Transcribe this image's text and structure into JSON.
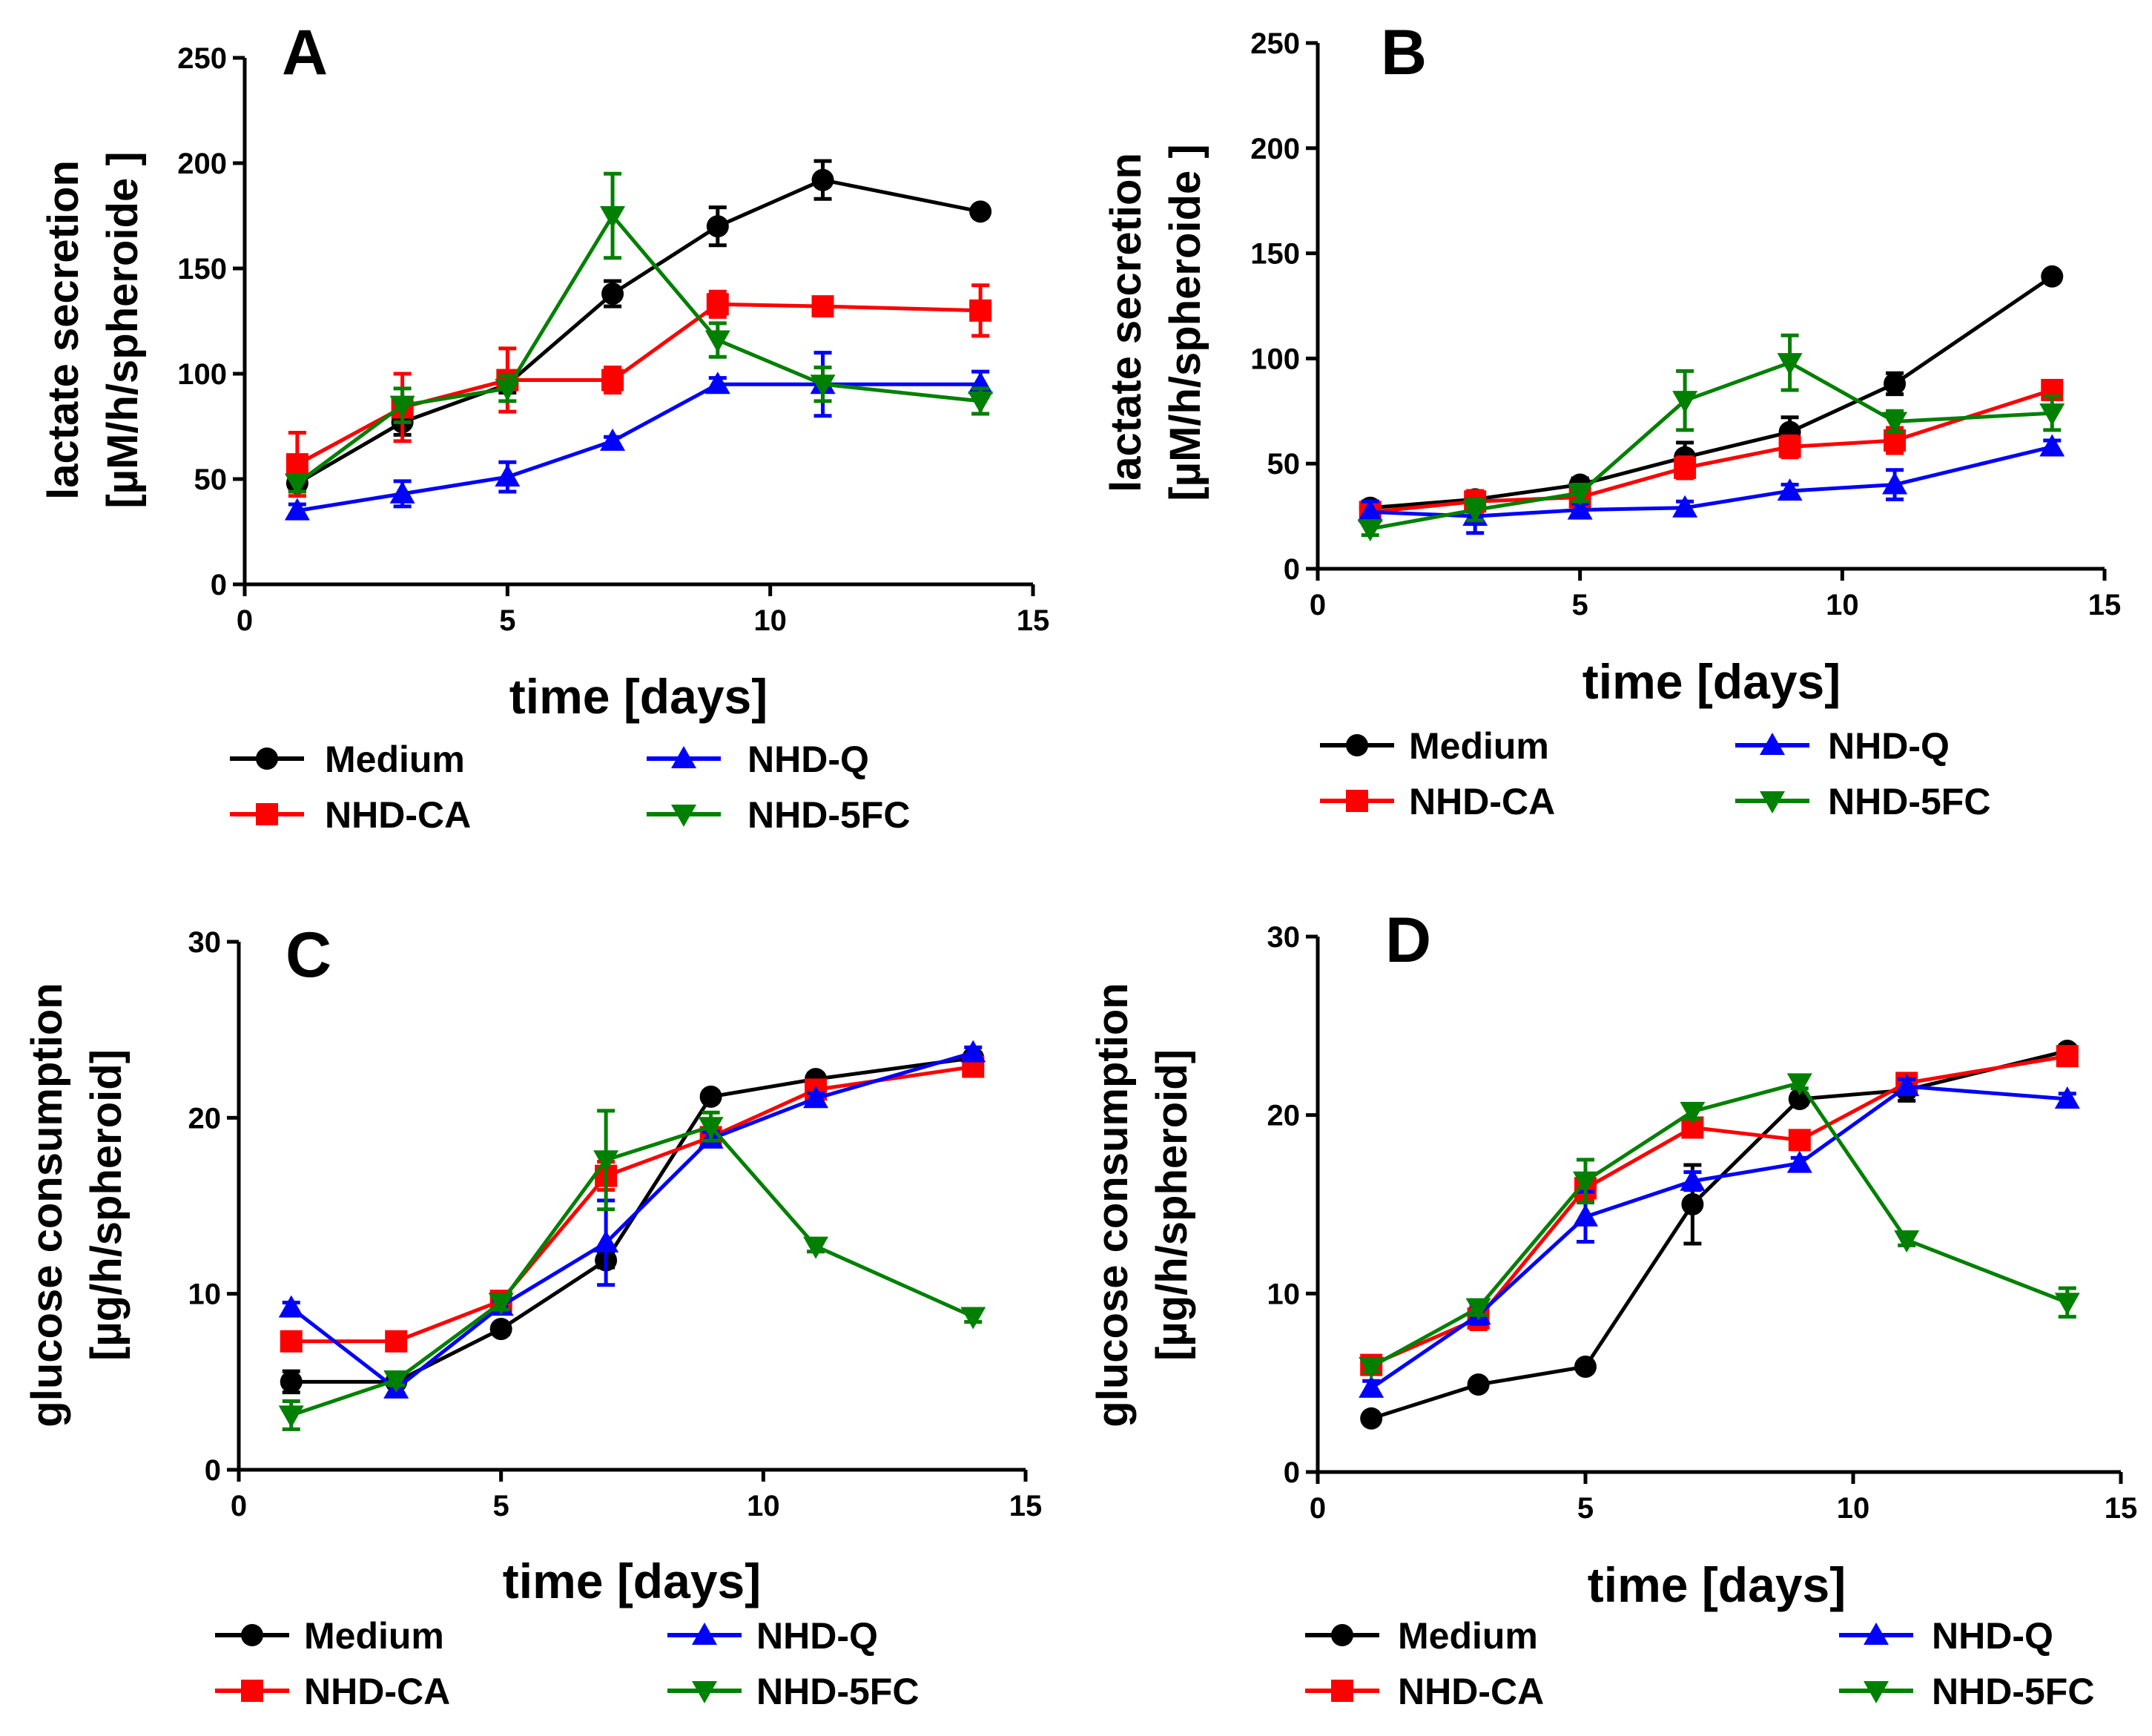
{
  "figure": {
    "legend_labels": {
      "medium": "Medium",
      "nhd_ca": "NHD-CA",
      "nhd_q": "NHD-Q",
      "nhd_5fc": "NHD-5FC"
    }
  },
  "colors": {
    "medium": "#000000",
    "nhd_ca": "#ff0000",
    "nhd_q": "#0000ff",
    "nhd_5fc": "#008000"
  },
  "chart_data": [
    {
      "type": "line",
      "panel": "A",
      "xlabel": "time [days]",
      "ylabel_line1": "lactate secretion",
      "ylabel_line2": "[µM/h/spheroide ]",
      "xlim": [
        0,
        15
      ],
      "ylim": [
        0,
        250
      ],
      "xticks": [
        0,
        5,
        10,
        15
      ],
      "yticks": [
        0,
        50,
        100,
        150,
        200,
        250
      ],
      "x": [
        1,
        3,
        5,
        7,
        9,
        11,
        14
      ],
      "series": [
        {
          "key": "medium",
          "name": "Medium",
          "marker": "circle",
          "values": [
            48,
            77,
            95,
            138,
            170,
            192,
            177
          ],
          "errors": [
            4,
            6,
            4,
            6,
            9,
            9,
            2
          ]
        },
        {
          "key": "nhd_ca",
          "name": "NHD-CA",
          "marker": "square",
          "values": [
            57,
            84,
            97,
            97,
            133,
            132,
            130
          ],
          "errors": [
            15,
            16,
            15,
            6,
            6,
            3,
            12
          ]
        },
        {
          "key": "nhd_q",
          "name": "NHD-Q",
          "marker": "triangle-up",
          "values": [
            35,
            43,
            51,
            68,
            95,
            95,
            95
          ],
          "errors": [
            3,
            6,
            7,
            2,
            3,
            15,
            6
          ]
        },
        {
          "key": "nhd_5fc",
          "name": "NHD-5FC",
          "marker": "triangle-down",
          "values": [
            48,
            85,
            93,
            175,
            116,
            95,
            87
          ],
          "errors": [
            4,
            8,
            6,
            20,
            8,
            8,
            6
          ]
        }
      ]
    },
    {
      "type": "line",
      "panel": "B",
      "xlabel": "time [days]",
      "ylabel_line1": "lactate secretion",
      "ylabel_line2": "[µM/h/spheroide ]",
      "xlim": [
        0,
        15
      ],
      "ylim": [
        0,
        250
      ],
      "xticks": [
        0,
        5,
        10,
        15
      ],
      "yticks": [
        0,
        50,
        100,
        150,
        200,
        250
      ],
      "x": [
        1,
        3,
        5,
        7,
        9,
        11,
        14
      ],
      "series": [
        {
          "key": "medium",
          "name": "Medium",
          "marker": "circle",
          "values": [
            29,
            33,
            40,
            53,
            65,
            88,
            139
          ],
          "errors": [
            3,
            4,
            3,
            7,
            7,
            5,
            2
          ]
        },
        {
          "key": "nhd_ca",
          "name": "NHD-CA",
          "marker": "square",
          "values": [
            27,
            32,
            34,
            48,
            58,
            61,
            85
          ],
          "errors": [
            4,
            5,
            4,
            5,
            5,
            6,
            4
          ]
        },
        {
          "key": "nhd_q",
          "name": "NHD-Q",
          "marker": "triangle-up",
          "values": [
            27,
            25,
            28,
            29,
            37,
            40,
            58
          ],
          "errors": [
            5,
            8,
            3,
            3,
            3,
            7,
            3
          ]
        },
        {
          "key": "nhd_5fc",
          "name": "NHD-5FC",
          "marker": "triangle-down",
          "values": [
            19,
            28,
            36,
            80,
            98,
            70,
            74
          ],
          "errors": [
            3,
            5,
            4,
            14,
            13,
            5,
            8
          ]
        }
      ]
    },
    {
      "type": "line",
      "panel": "C",
      "xlabel": "time [days]",
      "ylabel_line1": "glucose consumption",
      "ylabel_line2": "[µg/h/spheroid]",
      "xlim": [
        0,
        15
      ],
      "ylim": [
        0,
        30
      ],
      "xticks": [
        0,
        5,
        10,
        15
      ],
      "yticks": [
        0,
        10,
        20,
        30
      ],
      "x": [
        1,
        3,
        5,
        7,
        9,
        11,
        14
      ],
      "series": [
        {
          "key": "medium",
          "name": "Medium",
          "marker": "circle",
          "values": [
            5.0,
            5.0,
            8.0,
            11.9,
            21.2,
            22.2,
            23.4
          ],
          "errors": [
            0.6,
            0.3,
            0.3,
            0.4,
            0.3,
            0.3,
            0.3
          ]
        },
        {
          "key": "nhd_ca",
          "name": "NHD-CA",
          "marker": "square",
          "values": [
            7.3,
            7.3,
            9.6,
            16.7,
            18.9,
            21.6,
            22.9
          ],
          "errors": [
            0.4,
            0.3,
            0.4,
            0.8,
            0.5,
            0.4,
            0.4
          ]
        },
        {
          "key": "nhd_q",
          "name": "NHD-Q",
          "marker": "triangle-up",
          "values": [
            9.2,
            4.6,
            9.3,
            12.9,
            18.8,
            21.1,
            23.7
          ],
          "errors": [
            0.3,
            0.4,
            0.3,
            2.4,
            0.4,
            0.3,
            0.3
          ]
        },
        {
          "key": "nhd_5fc",
          "name": "NHD-5FC",
          "marker": "triangle-down",
          "values": [
            3.1,
            5.1,
            9.5,
            17.6,
            19.5,
            12.7,
            8.7
          ],
          "errors": [
            0.8,
            0.3,
            0.4,
            2.8,
            0.8,
            0.3,
            0.3
          ]
        }
      ]
    },
    {
      "type": "line",
      "panel": "D",
      "xlabel": "time [days]",
      "ylabel_line1": "glucose consumption",
      "ylabel_line2": "[µg/h/spheroid]",
      "xlim": [
        0,
        15
      ],
      "ylim": [
        0,
        30
      ],
      "xticks": [
        0,
        5,
        10,
        15
      ],
      "yticks": [
        0,
        10,
        20,
        30
      ],
      "x": [
        1,
        3,
        5,
        7,
        9,
        11,
        14
      ],
      "series": [
        {
          "key": "medium",
          "name": "Medium",
          "marker": "circle",
          "values": [
            3.0,
            4.9,
            5.9,
            15.0,
            20.9,
            21.4,
            23.6
          ],
          "errors": [
            0.2,
            0.2,
            0.2,
            2.2,
            0.3,
            0.6,
            0.3
          ]
        },
        {
          "key": "nhd_ca",
          "name": "NHD-CA",
          "marker": "square",
          "values": [
            6.0,
            8.6,
            15.9,
            19.3,
            18.6,
            21.8,
            23.3
          ],
          "errors": [
            0.3,
            0.6,
            0.7,
            0.4,
            0.4,
            0.5,
            0.3
          ]
        },
        {
          "key": "nhd_q",
          "name": "NHD-Q",
          "marker": "triangle-up",
          "values": [
            4.7,
            8.8,
            14.3,
            16.3,
            17.3,
            21.6,
            20.9
          ],
          "errors": [
            0.4,
            0.5,
            1.4,
            0.5,
            0.3,
            0.4,
            0.3
          ]
        },
        {
          "key": "nhd_5fc",
          "name": "NHD-5FC",
          "marker": "triangle-down",
          "values": [
            5.9,
            9.2,
            16.3,
            20.2,
            21.8,
            13.0,
            9.5
          ],
          "errors": [
            0.3,
            0.4,
            1.2,
            0.4,
            0.3,
            0.3,
            0.8
          ]
        }
      ]
    }
  ]
}
